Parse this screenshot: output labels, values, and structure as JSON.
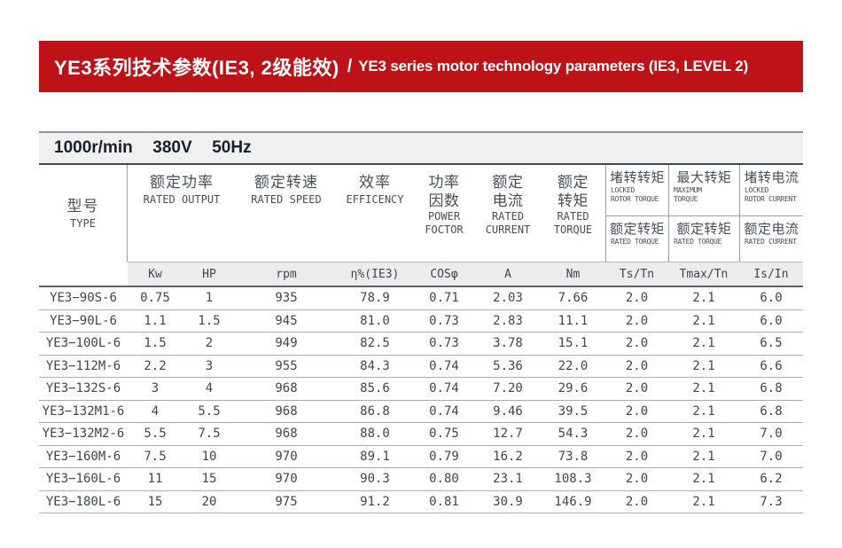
{
  "banner": {
    "title_zh": "YE3系列技术参数(IE3, 2级能效)",
    "divider": "/",
    "title_en": "YE3 series motor technology parameters (IE3, LEVEL 2)"
  },
  "spec_bar": {
    "text": "1000r/min  380V  50Hz"
  },
  "colors": {
    "banner_red": "#be1219",
    "banner_text": "#ffffff",
    "spec_bar_bg": "#f0f0f0",
    "units_row_bg": "#ececec",
    "text_dark": "#3e4450",
    "grid_line": "#9aa0a8"
  },
  "table": {
    "column_keys": [
      "type",
      "kw",
      "hp",
      "rpm",
      "efficiency",
      "cos_phi",
      "rated_current_a",
      "rated_torque_nm",
      "ts_tn",
      "tmax_tn",
      "is_in"
    ],
    "header": {
      "type_zh": "型号",
      "type_en": "TYPE",
      "rated_output_zh": "额定功率",
      "rated_output_en": "RATED OUTPUT",
      "rated_speed_zh": "额定转速",
      "rated_speed_en": "RATED SPEED",
      "efficiency_zh": "效率",
      "efficiency_en": "EFFICENCY",
      "power_factor_zh1": "功率",
      "power_factor_zh2": "因数",
      "power_factor_en1": "POWER",
      "power_factor_en2": "FOCTOR",
      "rated_current_zh1": "额定",
      "rated_current_zh2": "电流",
      "rated_current_en1": "RATED",
      "rated_current_en2": "CURRENT",
      "rated_torque_zh1": "额定",
      "rated_torque_zh2": "转矩",
      "rated_torque_en1": "RATED",
      "rated_torque_en2": "TORQUE",
      "locked_torque_zh": "堵转转矩",
      "locked_torque_en1": "LOCKED",
      "locked_torque_en2": "ROTOR TORQUE",
      "max_torque_zh": "最大转矩",
      "max_torque_en1": "MAXIMUM",
      "max_torque_en2": "TORQUE",
      "locked_current_zh": "堵转电流",
      "locked_current_en1": "LOCKED",
      "locked_current_en2": "ROTOR CURRENT",
      "ratio_torque_zh": "额定转矩",
      "ratio_torque_en": "RATED TORQUE",
      "ratio_current_zh": "额定电流",
      "ratio_current_en": "RATED CURRENT"
    },
    "units": [
      "Kw",
      "HP",
      "rpm",
      "η%(IE3)",
      "COSφ",
      "A",
      "Nm",
      "Ts/Tn",
      "Tmax/Tn",
      "Is/In"
    ],
    "rows": [
      [
        "YE3−90S-6",
        "0.75",
        "1",
        "935",
        "78.9",
        "0.71",
        "2.03",
        "7.66",
        "2.0",
        "2.1",
        "6.0"
      ],
      [
        "YE3−90L-6",
        "1.1",
        "1.5",
        "945",
        "81.0",
        "0.73",
        "2.83",
        "11.1",
        "2.0",
        "2.1",
        "6.0"
      ],
      [
        "YE3−100L-6",
        "1.5",
        "2",
        "949",
        "82.5",
        "0.73",
        "3.78",
        "15.1",
        "2.0",
        "2.1",
        "6.5"
      ],
      [
        "YE3−112M-6",
        "2.2",
        "3",
        "955",
        "84.3",
        "0.74",
        "5.36",
        "22.0",
        "2.0",
        "2.1",
        "6.6"
      ],
      [
        "YE3−132S-6",
        "3",
        "4",
        "968",
        "85.6",
        "0.74",
        "7.20",
        "29.6",
        "2.0",
        "2.1",
        "6.8"
      ],
      [
        "YE3−132M1-6",
        "4",
        "5.5",
        "968",
        "86.8",
        "0.74",
        "9.46",
        "39.5",
        "2.0",
        "2.1",
        "6.8"
      ],
      [
        "YE3−132M2-6",
        "5.5",
        "7.5",
        "968",
        "88.0",
        "0.75",
        "12.7",
        "54.3",
        "2.0",
        "2.1",
        "7.0"
      ],
      [
        "YE3−160M-6",
        "7.5",
        "10",
        "970",
        "89.1",
        "0.79",
        "16.2",
        "73.8",
        "2.0",
        "2.1",
        "7.0"
      ],
      [
        "YE3−160L-6",
        "11",
        "15",
        "970",
        "90.3",
        "0.80",
        "23.1",
        "108.3",
        "2.0",
        "2.1",
        "6.2"
      ],
      [
        "YE3−180L-6",
        "15",
        "20",
        "975",
        "91.2",
        "0.81",
        "30.9",
        "146.9",
        "2.0",
        "2.1",
        "7.3"
      ]
    ]
  }
}
